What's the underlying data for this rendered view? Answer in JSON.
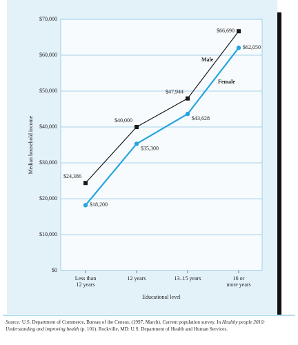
{
  "chart_data": {
    "type": "line",
    "categories": [
      "Less than\n12 years",
      "12 years",
      "13–15 years",
      "16 or\nmore years"
    ],
    "series": [
      {
        "name": "Male",
        "color": "#1a1a1a",
        "marker": "square",
        "values": [
          24386,
          40000,
          47944,
          66690
        ],
        "value_labels": [
          "$24,386",
          "$40,000",
          "$47,944",
          "$66,690"
        ]
      },
      {
        "name": "Female",
        "color": "#27a4dd",
        "marker": "circle",
        "values": [
          18200,
          35300,
          43628,
          62050
        ],
        "value_labels": [
          "$18,200",
          "$35,300",
          "$43,628",
          "$62,050"
        ]
      }
    ],
    "ylim": [
      0,
      70000
    ],
    "yticks": [
      {
        "value": 0,
        "label": "$0"
      },
      {
        "value": 10000,
        "label": "$10,000"
      },
      {
        "value": 20000,
        "label": "$20,000"
      },
      {
        "value": 30000,
        "label": "$30,000"
      },
      {
        "value": 40000,
        "label": "$40,000"
      },
      {
        "value": 50000,
        "label": "$50,000"
      },
      {
        "value": 60000,
        "label": "$60,000"
      },
      {
        "value": 70000,
        "label": "$70,000"
      }
    ],
    "y_label": "Median household income",
    "x_label": "Educational level",
    "grid": true
  },
  "source": [
    {
      "text": "Source:",
      "italic": true
    },
    {
      "text": " U.S. Department of Commerce, Bureau of the Census. (1997, March). Current population survey. In ",
      "italic": false
    },
    {
      "text": "Healthy people 2010: Understanding and improving health",
      "italic": true
    },
    {
      "text": " (p. 101). Rockville, MD: U.S. Department of Health and Human Services.",
      "italic": false
    }
  ]
}
